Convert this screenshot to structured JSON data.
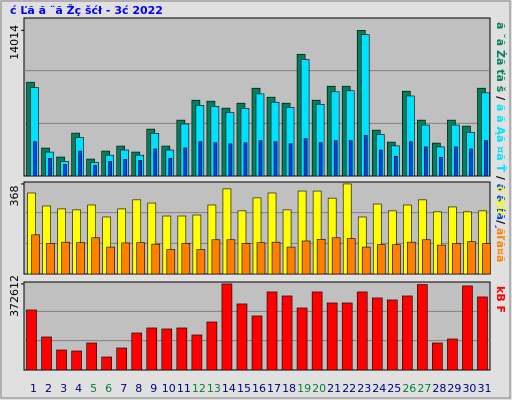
{
  "chart_data": [
    {
      "type": "bar",
      "title": "ć Ľă  ă ¨ă Žç šćł  - 3ć   2022",
      "ylim": [
        0,
        15200
      ],
      "yticks": [
        14014
      ],
      "legend_separator": "/",
      "series": [
        {
          "name": "ă ˘ă Żă ťă š",
          "color": "#00805c",
          "values": [
            9024,
            2688,
            1824,
            4128,
            1632,
            2400,
            2880,
            2304,
            4512,
            2880,
            5376,
            7296,
            7200,
            6528,
            7008,
            8448,
            7584,
            7008,
            11712,
            7296,
            8640,
            8640,
            14014,
            4416,
            3264,
            8160,
            5376,
            3168,
            5376,
            4800,
            8448
          ]
        },
        {
          "name": "ă ă Ąă ¤ă Ť",
          "color": "#00e0ff",
          "values": [
            8500,
            2300,
            1400,
            3700,
            1300,
            2000,
            2500,
            2000,
            4100,
            2500,
            5000,
            6800,
            6700,
            6100,
            6500,
            7900,
            7100,
            6600,
            11200,
            6900,
            8100,
            8200,
            13600,
            4000,
            2900,
            7700,
            4900,
            2800,
            4900,
            4200,
            8000
          ]
        },
        {
          "name": "ă ă źă ¸",
          "color": "#0040ff",
          "values": [
            3300,
            1700,
            1100,
            2400,
            1000,
            1400,
            1600,
            1500,
            2600,
            1700,
            2700,
            3300,
            3200,
            3100,
            3200,
            3400,
            3300,
            3100,
            3600,
            3200,
            3400,
            3400,
            3900,
            2500,
            1900,
            3300,
            2800,
            1800,
            2800,
            2600,
            3400
          ]
        }
      ]
    },
    {
      "type": "bar",
      "ylim": [
        0,
        376
      ],
      "yticks": [
        368
      ],
      "legend_separator": "/",
      "series": [
        {
          "name": "č¨Şĺč",
          "color": "#ffff00",
          "values": [
            331,
            278,
            266,
            262,
            282,
            233,
            266,
            303,
            290,
            237,
            237,
            241,
            282,
            348,
            258,
            311,
            331,
            262,
            339,
            339,
            310,
            368,
            233,
            286,
            258,
            282,
            303,
            254,
            274,
            254,
            258
          ]
        },
        {
          "name": "ăľă¤ă",
          "color": "#ff8000",
          "values": [
            160,
            125,
            130,
            128,
            148,
            110,
            127,
            128,
            122,
            100,
            125,
            100,
            140,
            140,
            125,
            128,
            130,
            110,
            135,
            142,
            148,
            145,
            110,
            120,
            120,
            130,
            140,
            118,
            125,
            132,
            125
          ]
        }
      ]
    },
    {
      "type": "bar",
      "ylim": [
        0,
        381000
      ],
      "yticks": [
        372612
      ],
      "series": [
        {
          "name": "kB F",
          "color": "#ff0000",
          "values": [
            260000,
            143000,
            86700,
            82300,
            117000,
            56300,
            95300,
            160300,
            182000,
            177700,
            182000,
            151700,
            208000,
            372612,
            286000,
            234000,
            338000,
            320600,
            268600,
            338000,
            290300,
            290300,
            338000,
            312000,
            303300,
            320600,
            370000,
            117000,
            134300,
            364000,
            316300
          ]
        }
      ],
      "categories": [
        "1",
        "2",
        "3",
        "4",
        "5",
        "6",
        "7",
        "8",
        "9",
        "10",
        "11",
        "12",
        "13",
        "14",
        "15",
        "16",
        "17",
        "18",
        "19",
        "20",
        "21",
        "22",
        "23",
        "24",
        "25",
        "26",
        "27",
        "28",
        "29",
        "30",
        "31"
      ],
      "category_colors": [
        "#000080",
        "#000080",
        "#000080",
        "#000080",
        "#008040",
        "#008040",
        "#000080",
        "#000080",
        "#000080",
        "#000080",
        "#000080",
        "#008040",
        "#008040",
        "#000080",
        "#000080",
        "#000080",
        "#000080",
        "#000080",
        "#008040",
        "#008040",
        "#000080",
        "#000080",
        "#000080",
        "#000080",
        "#000080",
        "#008040",
        "#008040",
        "#000080",
        "#000080",
        "#000080",
        "#000080"
      ]
    }
  ]
}
